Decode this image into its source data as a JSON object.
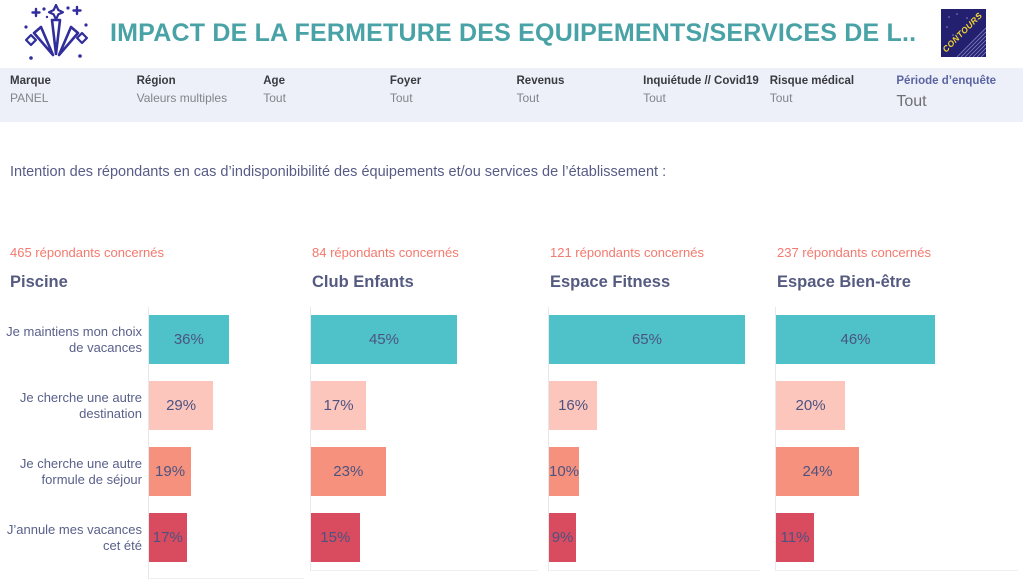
{
  "header": {
    "title": "IMPACT DE LA FERMETURE DES EQUIPEMENTS/SERVICES DE L..",
    "brand_logo_text": "CONTOURS"
  },
  "filterbar": {
    "filters": [
      {
        "label": "Marque",
        "value": "PANEL",
        "highlight": false
      },
      {
        "label": "Région",
        "value": "Valeurs multiples",
        "highlight": false
      },
      {
        "label": "Age",
        "value": "Tout",
        "highlight": false
      },
      {
        "label": "Foyer",
        "value": "Tout",
        "highlight": false
      },
      {
        "label": "Revenus",
        "value": "Tout",
        "highlight": false
      },
      {
        "label": "Inquiétude // Covid19",
        "value": "Tout",
        "highlight": false
      },
      {
        "label": "Risque médical",
        "value": "Tout",
        "highlight": false
      },
      {
        "label": "Période d’enquête",
        "value": "Tout",
        "highlight": true
      }
    ]
  },
  "subtitle": "Intention des répondants en cas d’indisponibibilité des équipements et/ou services de l’établissement :",
  "chart_data": {
    "type": "bar",
    "orientation": "horizontal",
    "value_suffix": "%",
    "xlim": [
      0,
      70
    ],
    "grid": false,
    "legend": "none",
    "categories": [
      "Je maintiens mon choix de vacances",
      "Je cherche une autre destination",
      "Je cherche une autre formule de séjour",
      "J’annule mes vacances cet été"
    ],
    "row_colors": [
      "#4FC2C9",
      "#FCC6BD",
      "#F6917E",
      "#D94B5F"
    ],
    "charts": [
      {
        "title": "Piscine",
        "respondents": "465 répondants concernés",
        "values": [
          36,
          29,
          19,
          17
        ]
      },
      {
        "title": "Club Enfants",
        "respondents": "84 répondants concernés",
        "values": [
          45,
          17,
          23,
          15
        ]
      },
      {
        "title": "Espace Fitness",
        "respondents": "121 répondants concernés",
        "values": [
          65,
          16,
          10,
          9
        ]
      },
      {
        "title": "Espace Bien-être",
        "respondents": "237 répondants concernés",
        "values": [
          46,
          20,
          24,
          11
        ]
      }
    ]
  }
}
